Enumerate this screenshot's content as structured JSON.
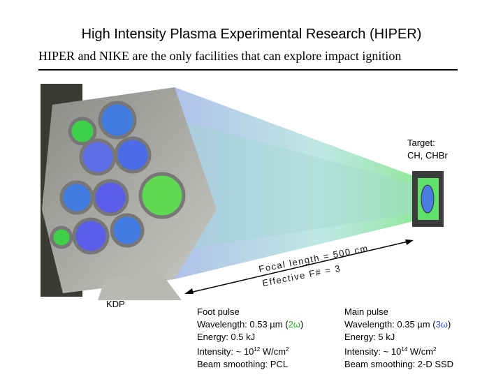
{
  "header": {
    "title": "High Intensity Plasma Experimental Research (HIPER)",
    "subtitle": "HIPER and NIKE are the only facilities that can explore impact ignition"
  },
  "figure": {
    "target": [
      "Target:",
      "CH, CHBr"
    ],
    "focal_length": "Focal length = 500 cm",
    "f_number": "Effective F# = 3",
    "kdp": "KDP"
  },
  "foot_pulse": {
    "heading": "Foot pulse",
    "wavelength": [
      "Wavelength: 0.53 µm (",
      "2ω",
      ")"
    ],
    "energy": "Energy: 0.5 kJ",
    "intensity": [
      "Intensity: ~ 10",
      "12",
      " W/cm",
      "2"
    ],
    "smoothing": "Beam smoothing: PCL"
  },
  "main_pulse": {
    "heading": "Main pulse",
    "wavelength": [
      "Wavelength: 0.35 µm (",
      "3ω",
      ")"
    ],
    "energy": "Energy: 5 kJ",
    "intensity": [
      "Intensity: ~ 10",
      "14",
      " W/cm",
      "2"
    ],
    "smoothing": "Beam smoothing: 2-D SSD"
  }
}
